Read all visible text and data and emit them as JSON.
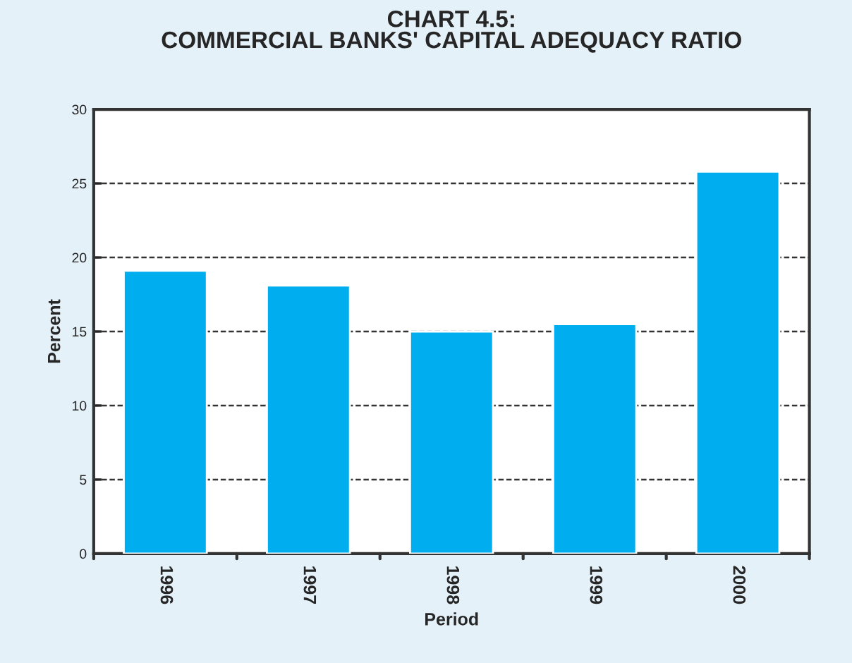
{
  "chart_data": {
    "type": "bar",
    "title": "CHART 4.5:\nCOMMERCIAL BANKS' CAPITAL ADEQUACY RATIO",
    "categories": [
      "1996",
      "1997",
      "1998",
      "1999",
      "2000"
    ],
    "values": [
      19.1,
      18.1,
      15.0,
      15.5,
      25.8
    ],
    "color": "#00aeef",
    "xlabel": "Period",
    "ylabel": "Percent",
    "ylim": [
      0,
      30
    ],
    "yticks": [
      0,
      5,
      10,
      15,
      20,
      25,
      30
    ],
    "grid": "y",
    "legend": false
  }
}
